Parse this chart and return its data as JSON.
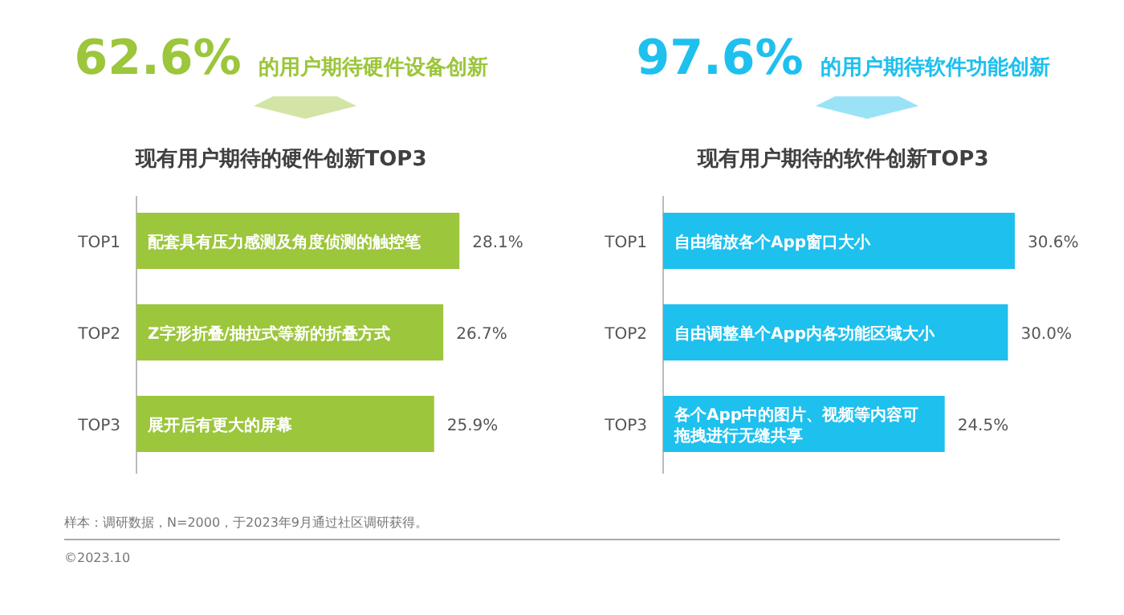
{
  "chart_data": [
    {
      "type": "bar",
      "orientation": "horizontal",
      "title": "62.6% 的用户期待硬件设备创新",
      "subtitle": "现有用户期待的硬件创新TOP3",
      "color": "#9cc63b",
      "categories": [
        "TOP1",
        "TOP2",
        "TOP3"
      ],
      "values": [
        28.1,
        26.7,
        25.9
      ],
      "value_labels": [
        "28.1%",
        "26.7%",
        "25.9%"
      ],
      "annotations": [
        "配套具有压力感测及角度侦测的触控笔",
        "Z字形折叠/抽拉式等新的折叠方式",
        "展开后有更大的屏幕",
        "样本：调研数据，N=2000，于2023年9月通过社区调研获得。",
        "©2023.10"
      ]
    },
    {
      "type": "bar",
      "orientation": "horizontal",
      "title": "97.6% 的用户期待软件功能创新",
      "subtitle": "现有用户期待的软件创新TOP3",
      "color": "#1ec0ee",
      "categories": [
        "TOP1",
        "TOP2",
        "TOP3"
      ],
      "values": [
        30.6,
        30.0,
        24.5
      ],
      "value_labels": [
        "30.6%",
        "30.0%",
        "24.5%"
      ],
      "annotations": [
        "自由缩放各个App窗口大小",
        "自由调整单个App内各功能区域大小",
        "各个App中的图片、视频等内容可拖拽进行无缝共享"
      ]
    }
  ]
}
